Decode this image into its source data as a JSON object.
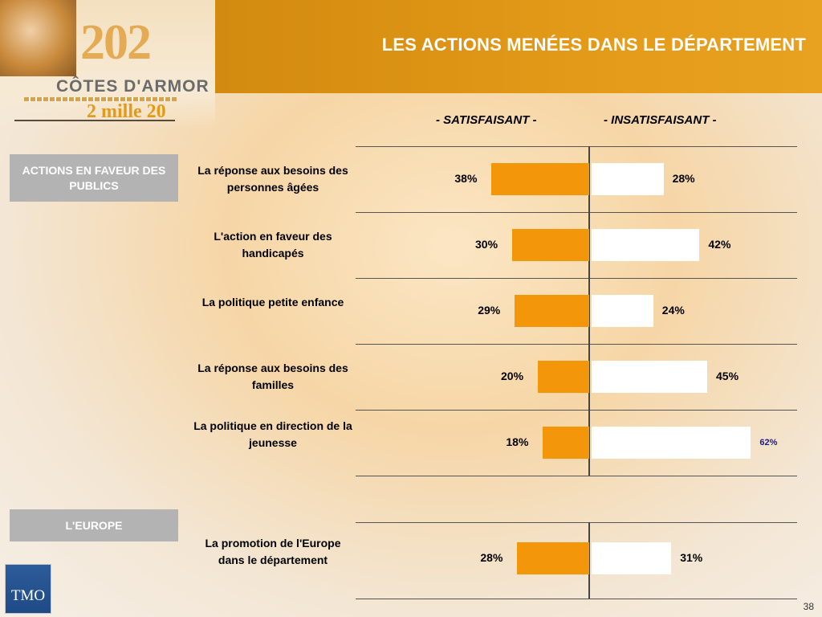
{
  "header": {
    "title": "LES ACTIONS MENÉES DANS LE DÉPARTEMENT"
  },
  "logo": {
    "year_text": "202",
    "region": "CÔTES D'ARMOR",
    "tagline": "2 mille 20"
  },
  "columns": {
    "satisfied": "- SATISFAISANT -",
    "unsatisfied": "- INSATISFAISANT -"
  },
  "sections": [
    {
      "label": "ACTIONS EN FAVEUR DES PUBLICS"
    },
    {
      "label": "L'EUROPE"
    }
  ],
  "colors": {
    "satisfied": "#f4960a",
    "unsatisfied": "#ffffff",
    "header": "#e39a18",
    "section_box": "#b3b3b3"
  },
  "chart_data": {
    "type": "bar",
    "orientation": "horizontal-diverging",
    "categories": [
      "La réponse aux besoins des personnes âgées",
      "L'action en faveur des handicapés",
      "La politique petite enfance",
      "La réponse aux besoins des familles",
      "La politique en direction de la jeunesse",
      "La promotion de l'Europe dans le département"
    ],
    "series": [
      {
        "name": "- SATISFAISANT -",
        "values": [
          38,
          30,
          29,
          20,
          18,
          28
        ]
      },
      {
        "name": "- INSATISFAISANT -",
        "values": [
          28,
          42,
          24,
          45,
          62,
          31
        ]
      }
    ],
    "labels": {
      "satisfied": [
        "38%",
        "30%",
        "29%",
        "20%",
        "18%",
        "28%"
      ],
      "unsatisfied": [
        "28%",
        "42%",
        "24%",
        "45%",
        "62%",
        "31%"
      ]
    },
    "title": "",
    "xlabel": "",
    "ylabel": ""
  },
  "footer": {
    "logo_text": "TMO",
    "page_number": "38"
  }
}
